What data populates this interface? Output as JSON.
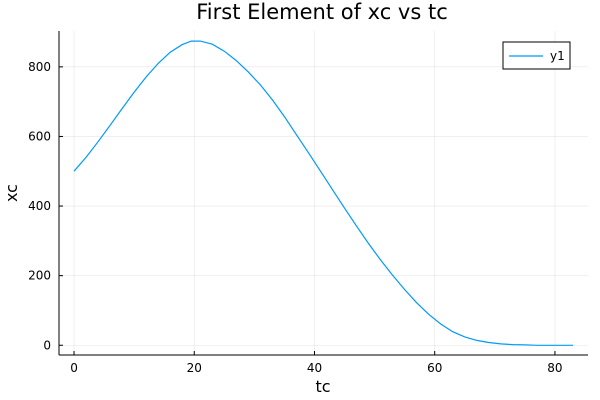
{
  "chart_data": {
    "type": "line",
    "title": "First Element of xc vs tc",
    "xlabel": "tc",
    "ylabel": "xc",
    "xlim": [
      -2.5,
      85.5
    ],
    "ylim": [
      -28,
      903
    ],
    "xticks": [
      0,
      20,
      40,
      60,
      80
    ],
    "yticks": [
      0,
      200,
      400,
      600,
      800
    ],
    "grid": true,
    "legend_position": "top-right",
    "series": [
      {
        "name": "y1",
        "color": "#009AFA",
        "x": [
          0,
          2,
          4,
          6,
          8,
          10,
          12,
          14,
          16,
          18,
          19.5,
          21,
          23,
          25,
          27,
          29,
          31,
          33,
          35,
          37,
          39,
          41,
          43,
          45,
          47,
          49,
          51,
          53,
          55,
          57,
          59,
          61,
          63,
          65,
          67,
          69,
          71,
          73,
          75,
          77,
          79,
          81,
          83
        ],
        "y": [
          500,
          540,
          585,
          632,
          680,
          727,
          771,
          810,
          842,
          864,
          874,
          874,
          865,
          845,
          818,
          785,
          748,
          705,
          657,
          605,
          553,
          500,
          447,
          394,
          342,
          292,
          245,
          201,
          160,
          122,
          89,
          61,
          39,
          24,
          14,
          8,
          4,
          2,
          1,
          0,
          0,
          0,
          0
        ]
      }
    ]
  }
}
